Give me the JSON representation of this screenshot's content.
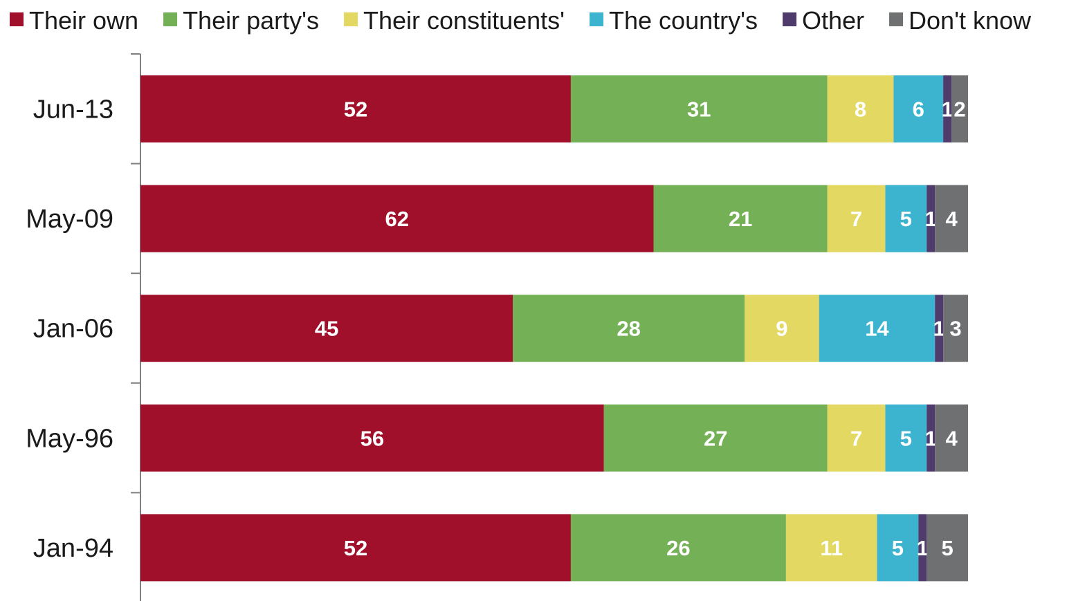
{
  "chart_data": {
    "type": "bar",
    "orientation": "horizontal",
    "stacked": true,
    "categories": [
      "Jun-13",
      "May-09",
      "Jan-06",
      "May-96",
      "Jan-94"
    ],
    "series": [
      {
        "name": "Their own",
        "color": "#a0102a",
        "values": [
          52,
          62,
          45,
          56,
          52
        ]
      },
      {
        "name": "Their party's",
        "color": "#74b055",
        "values": [
          31,
          21,
          28,
          27,
          26
        ]
      },
      {
        "name": "Their constituents'",
        "color": "#e2d862",
        "values": [
          8,
          7,
          9,
          7,
          11
        ]
      },
      {
        "name": "The country's",
        "color": "#3db4cf",
        "values": [
          6,
          5,
          14,
          5,
          5
        ]
      },
      {
        "name": "Other",
        "color": "#4f3c6c",
        "values": [
          1,
          1,
          1,
          1,
          1
        ]
      },
      {
        "name": "Don't know",
        "color": "#6e7072",
        "values": [
          2,
          4,
          3,
          4,
          5
        ]
      }
    ],
    "xlim": [
      0,
      100
    ],
    "legend_position": "top",
    "grid": false
  }
}
